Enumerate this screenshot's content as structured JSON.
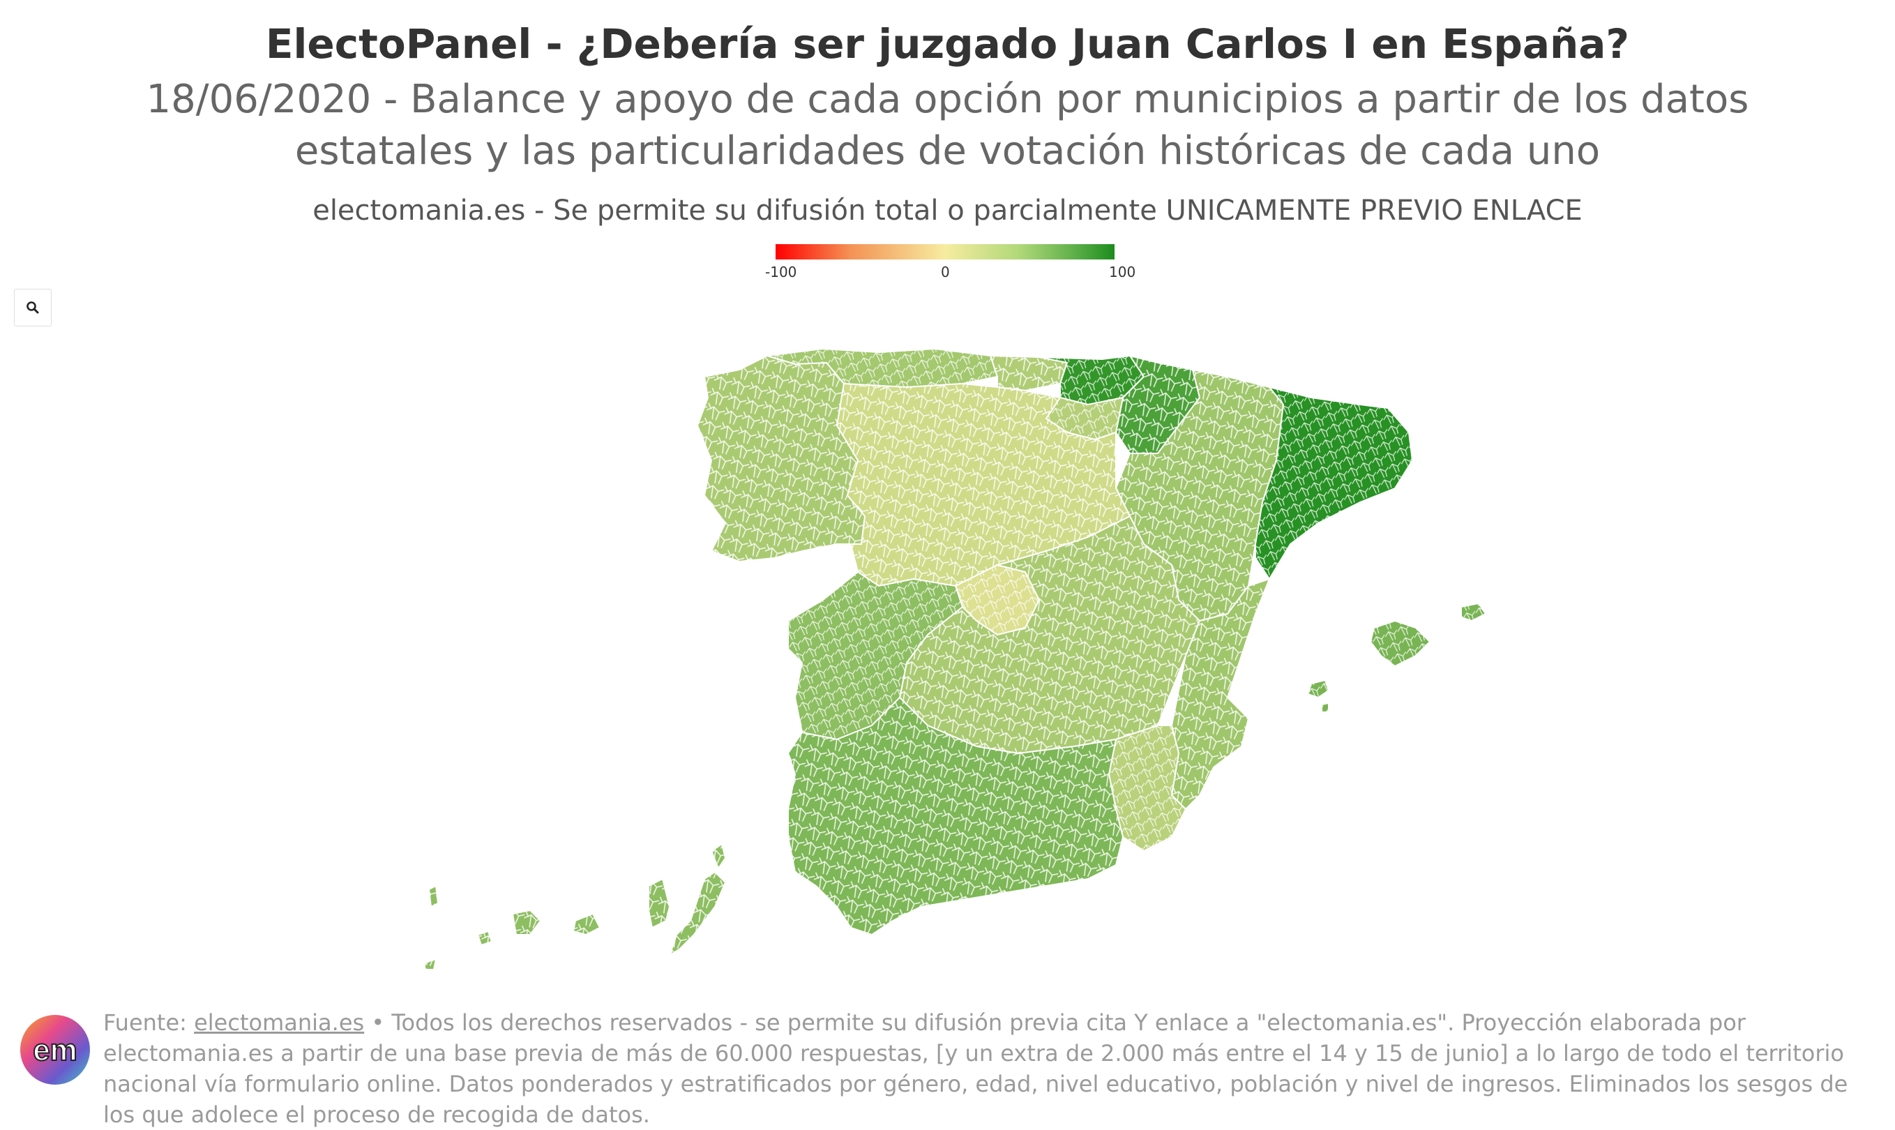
{
  "header": {
    "title": "ElectoPanel - ¿Debería ser juzgado Juan Carlos I en España?",
    "subtitle": "18/06/2020 - Balance y apoyo de cada opción por municipios a partir de los datos estatales y las particularidades de votación históricas de cada uno",
    "credit": "electomania.es - Se permite su difusión total o parcialmente UNICAMENTE PREVIO ENLACE"
  },
  "legend": {
    "min_label": "-100",
    "mid_label": "0",
    "max_label": "100",
    "scale": [
      -100,
      0,
      100
    ],
    "colors": {
      "min": "#ff0000",
      "mid": "#f6eca0",
      "max": "#1c8c1c"
    }
  },
  "controls": {
    "zoom_icon": "search-icon"
  },
  "map": {
    "regions": [
      {
        "name": "Galicia",
        "balance": 35
      },
      {
        "name": "Asturias",
        "balance": 38
      },
      {
        "name": "Cantabria",
        "balance": 32
      },
      {
        "name": "País Vasco",
        "balance": 90
      },
      {
        "name": "Navarra",
        "balance": 78
      },
      {
        "name": "La Rioja",
        "balance": 30
      },
      {
        "name": "Aragón",
        "balance": 40
      },
      {
        "name": "Cataluña",
        "balance": 95
      },
      {
        "name": "Castilla y León",
        "balance": 18
      },
      {
        "name": "Madrid",
        "balance": 12
      },
      {
        "name": "Castilla-La Mancha",
        "balance": 35
      },
      {
        "name": "Extremadura",
        "balance": 48
      },
      {
        "name": "Comunidad Valenciana",
        "balance": 40
      },
      {
        "name": "Murcia",
        "balance": 28
      },
      {
        "name": "Andalucía",
        "balance": 55
      },
      {
        "name": "Islas Baleares",
        "balance": 58
      },
      {
        "name": "Canarias",
        "balance": 48
      }
    ]
  },
  "footer": {
    "logo_text": "em",
    "source_label": "Fuente: ",
    "source_link": "electomania.es",
    "source_rest": " • Todos los derechos reservados - se permite su difusión previa cita Y enlace a \"electomania.es\". Proyección elaborada por electomania.es a partir de una base previa de más de 60.000 respuestas, [y un extra de 2.000 más entre el 14 y 15 de junio] a lo largo de todo el territorio nacional vía formulario online. Datos ponderados y estratificados por género, edad, nivel educativo, población y nivel de ingresos. Eliminados los sesgos de los que adolece el proceso de recogida de datos."
  }
}
